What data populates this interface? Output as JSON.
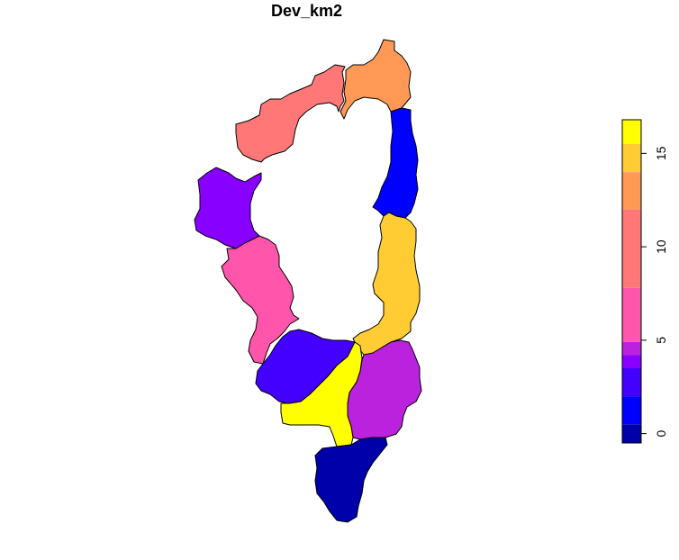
{
  "title": "Dev_km2",
  "legend": {
    "min": 0,
    "max": 17,
    "ticks": [
      "0",
      "5",
      "10",
      "15"
    ],
    "tick_values": [
      0,
      5,
      10,
      15
    ],
    "bands": [
      {
        "from": -0.5,
        "to": 0.5,
        "color": "#0000AA"
      },
      {
        "from": 0.5,
        "to": 2.0,
        "color": "#0000FF"
      },
      {
        "from": 2.0,
        "to": 3.5,
        "color": "#4400FF"
      },
      {
        "from": 3.5,
        "to": 4.2,
        "color": "#8800FF"
      },
      {
        "from": 4.2,
        "to": 4.9,
        "color": "#BB22DD"
      },
      {
        "from": 4.9,
        "to": 7.8,
        "color": "#FF55AA"
      },
      {
        "from": 7.8,
        "to": 12.0,
        "color": "#FF7777"
      },
      {
        "from": 12.0,
        "to": 14.0,
        "color": "#FF9955"
      },
      {
        "from": 14.0,
        "to": 15.5,
        "color": "#FFCC33"
      },
      {
        "from": 15.5,
        "to": 16.8,
        "color": "#FFFF00"
      }
    ]
  },
  "regions": [
    {
      "name": "north-salmon",
      "value": 10,
      "color": "#FF7777"
    },
    {
      "name": "north-orange",
      "value": 13,
      "color": "#FF9955"
    },
    {
      "name": "northeast-blue",
      "value": 1,
      "color": "#0000FF"
    },
    {
      "name": "west-purple",
      "value": 4,
      "color": "#8800FF"
    },
    {
      "name": "west-pink",
      "value": 6,
      "color": "#FF55AA"
    },
    {
      "name": "east-gold",
      "value": 15,
      "color": "#FFCC33"
    },
    {
      "name": "south-indigo",
      "value": 3,
      "color": "#4400FF"
    },
    {
      "name": "south-magenta",
      "value": 4.5,
      "color": "#BB22DD"
    },
    {
      "name": "south-yellow",
      "value": 16.5,
      "color": "#FFFF00"
    },
    {
      "name": "southern-navy",
      "value": 0,
      "color": "#0000AA"
    }
  ]
}
